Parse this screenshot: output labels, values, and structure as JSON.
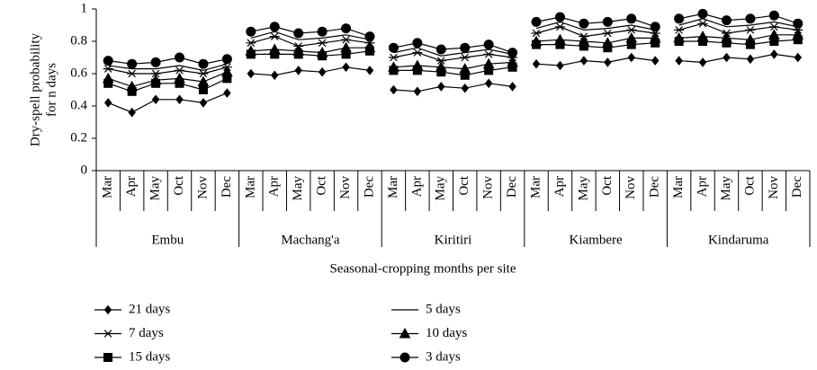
{
  "chart_data": {
    "type": "line",
    "ylabel": [
      "Dry-spell probability",
      "for n days"
    ],
    "xlabel": "Seasonal-cropping months per site",
    "ylim": [
      0,
      1
    ],
    "yticks": [
      0,
      0.2,
      0.4,
      0.6,
      0.8,
      1
    ],
    "groups": [
      {
        "name": "Embu",
        "categories": [
          "Mar",
          "Apr",
          "May",
          "Oct",
          "Nov",
          "Dec"
        ]
      },
      {
        "name": "Machang'a",
        "categories": [
          "Mar",
          "Apr",
          "May",
          "Oct",
          "Nov",
          "Dec"
        ]
      },
      {
        "name": "Kiritiri",
        "categories": [
          "Mar",
          "Apr",
          "May",
          "Oct",
          "Nov",
          "Dec"
        ]
      },
      {
        "name": "Kiambere",
        "categories": [
          "Mar",
          "Apr",
          "May",
          "Oct",
          "Nov",
          "Dec"
        ]
      },
      {
        "name": "Kindaruma",
        "categories": [
          "Mar",
          "Apr",
          "May",
          "Oct",
          "Nov",
          "Dec"
        ]
      }
    ],
    "series": [
      {
        "name": "21 days",
        "marker": "diamond",
        "color": "#000000",
        "values": [
          0.42,
          0.36,
          0.44,
          0.44,
          0.42,
          0.48,
          0.6,
          0.59,
          0.62,
          0.61,
          0.64,
          0.62,
          0.5,
          0.49,
          0.52,
          0.51,
          0.54,
          0.52,
          0.66,
          0.65,
          0.68,
          0.67,
          0.7,
          0.68,
          0.68,
          0.67,
          0.7,
          0.69,
          0.72,
          0.7
        ]
      },
      {
        "name": "5 days",
        "marker": "none",
        "color": "#000000",
        "values": [
          0.65,
          0.63,
          0.63,
          0.65,
          0.62,
          0.66,
          0.82,
          0.86,
          0.81,
          0.82,
          0.84,
          0.81,
          0.73,
          0.76,
          0.71,
          0.73,
          0.75,
          0.72,
          0.88,
          0.92,
          0.87,
          0.88,
          0.9,
          0.87,
          0.9,
          0.94,
          0.89,
          0.9,
          0.92,
          0.89
        ]
      },
      {
        "name": "7 days",
        "marker": "asterisk",
        "color": "#000000",
        "values": [
          0.63,
          0.6,
          0.6,
          0.62,
          0.6,
          0.64,
          0.79,
          0.83,
          0.77,
          0.79,
          0.81,
          0.79,
          0.7,
          0.73,
          0.68,
          0.7,
          0.72,
          0.7,
          0.85,
          0.89,
          0.83,
          0.85,
          0.87,
          0.85,
          0.87,
          0.91,
          0.85,
          0.87,
          0.89,
          0.87
        ]
      },
      {
        "name": "10 days",
        "marker": "triangle",
        "color": "#000000",
        "values": [
          0.57,
          0.52,
          0.56,
          0.57,
          0.55,
          0.61,
          0.74,
          0.75,
          0.74,
          0.73,
          0.76,
          0.76,
          0.64,
          0.65,
          0.64,
          0.63,
          0.66,
          0.67,
          0.8,
          0.81,
          0.8,
          0.79,
          0.82,
          0.82,
          0.82,
          0.83,
          0.82,
          0.81,
          0.84,
          0.84
        ]
      },
      {
        "name": "15 days",
        "marker": "square",
        "color": "#000000",
        "values": [
          0.54,
          0.49,
          0.54,
          0.54,
          0.5,
          0.57,
          0.72,
          0.72,
          0.72,
          0.71,
          0.72,
          0.74,
          0.62,
          0.62,
          0.61,
          0.59,
          0.62,
          0.64,
          0.78,
          0.78,
          0.77,
          0.76,
          0.78,
          0.79,
          0.8,
          0.8,
          0.79,
          0.78,
          0.8,
          0.81
        ]
      },
      {
        "name": "3 days",
        "marker": "circle",
        "color": "#000000",
        "values": [
          0.68,
          0.66,
          0.67,
          0.7,
          0.66,
          0.69,
          0.86,
          0.89,
          0.85,
          0.86,
          0.88,
          0.83,
          0.76,
          0.79,
          0.75,
          0.76,
          0.78,
          0.73,
          0.92,
          0.95,
          0.91,
          0.92,
          0.94,
          0.89,
          0.94,
          0.97,
          0.93,
          0.94,
          0.96,
          0.91
        ]
      }
    ]
  }
}
